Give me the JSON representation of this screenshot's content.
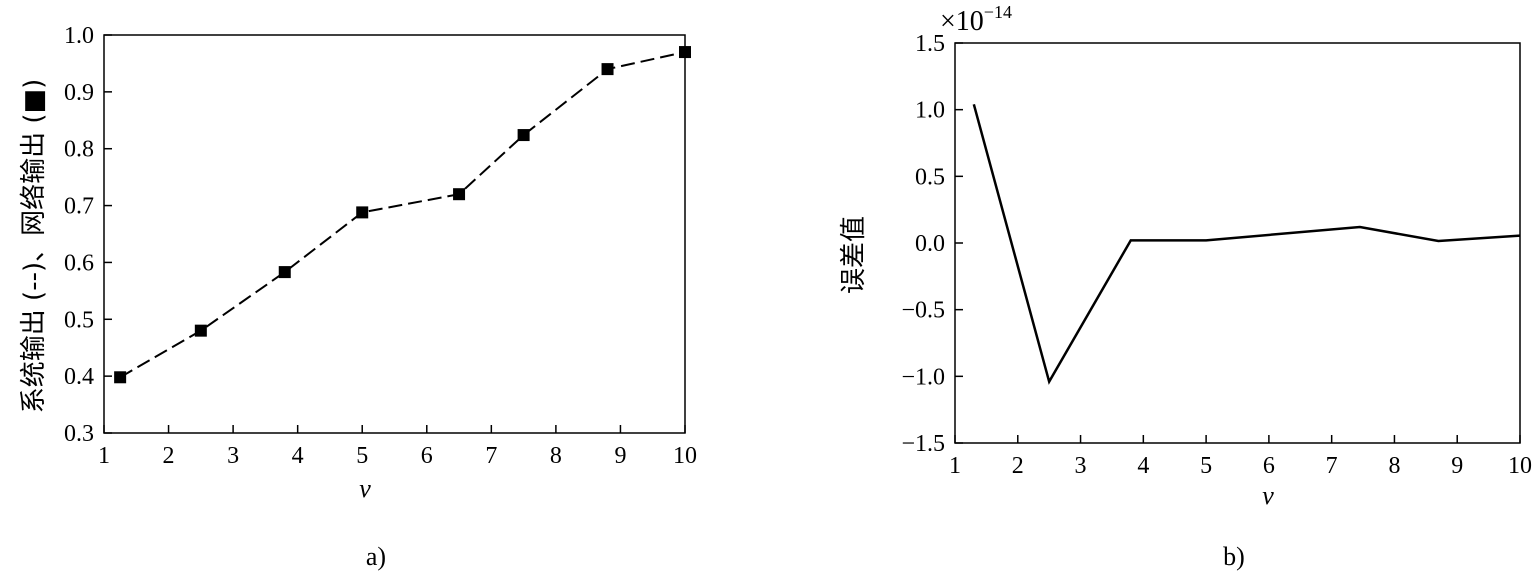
{
  "chart_data": [
    {
      "type": "line",
      "panel_label": "a)",
      "xlabel": "v",
      "ylabel": "系统输出 (--)、网络输出 (■)",
      "xlim": [
        1,
        10
      ],
      "ylim": [
        0.3,
        1.0
      ],
      "x_ticks": [
        "1",
        "2",
        "3",
        "4",
        "5",
        "6",
        "7",
        "8",
        "9",
        "10"
      ],
      "y_ticks": [
        "0.3",
        "0.4",
        "0.5",
        "0.6",
        "0.7",
        "0.8",
        "0.9",
        "1.0"
      ],
      "legend": "none",
      "grid": false,
      "series": [
        {
          "name": "系统输出",
          "style": "dashed",
          "x": [
            1.25,
            2.5,
            3.8,
            5.0,
            6.5,
            7.5,
            8.8,
            10.0
          ],
          "y": [
            0.398,
            0.48,
            0.583,
            0.688,
            0.72,
            0.824,
            0.94,
            0.97
          ]
        },
        {
          "name": "网络输出",
          "style": "square-markers",
          "x": [
            1.25,
            2.5,
            3.8,
            5.0,
            6.5,
            7.5,
            8.8,
            10.0
          ],
          "y": [
            0.398,
            0.48,
            0.583,
            0.688,
            0.72,
            0.824,
            0.94,
            0.97
          ]
        }
      ]
    },
    {
      "type": "line",
      "panel_label": "b)",
      "xlabel": "v",
      "ylabel": "误差值",
      "scale_factor_base": "×10",
      "scale_factor_exp": "−14",
      "xlim": [
        1,
        10
      ],
      "ylim": [
        -1.5,
        1.5
      ],
      "x_ticks": [
        "1",
        "2",
        "3",
        "4",
        "5",
        "6",
        "7",
        "8",
        "9",
        "10"
      ],
      "y_ticks": [
        "−1.5",
        "−1.0",
        "−0.5",
        "0.0",
        "0.5",
        "1.0",
        "1.5"
      ],
      "legend": "none",
      "grid": false,
      "series": [
        {
          "style": "solid",
          "x": [
            1.3,
            2.5,
            3.8,
            5.0,
            7.45,
            8.7,
            10.0
          ],
          "y": [
            1.04,
            -1.04,
            0.02,
            0.02,
            0.12,
            0.015,
            0.055
          ]
        }
      ]
    }
  ]
}
